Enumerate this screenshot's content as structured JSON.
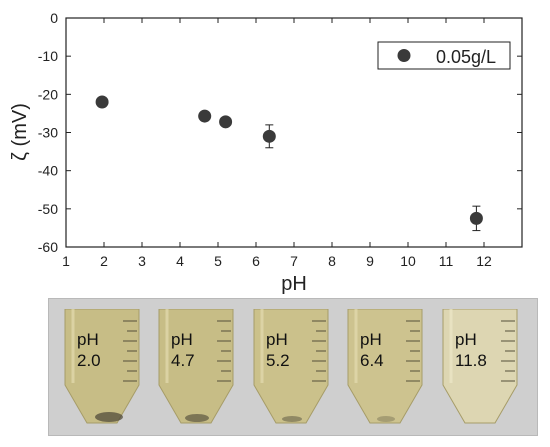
{
  "chart_data": {
    "type": "scatter",
    "title": "",
    "xlabel": "pH",
    "ylabel": "ζ (mV)",
    "xlim": [
      1,
      13
    ],
    "ylim": [
      -60,
      0
    ],
    "xticks": [
      1,
      2,
      3,
      4,
      5,
      6,
      7,
      8,
      9,
      10,
      11,
      12
    ],
    "yticks": [
      0,
      -10,
      -20,
      -30,
      -40,
      -50,
      -60
    ],
    "legend": "top-right",
    "grid": false,
    "series": [
      {
        "name": "0.05g/L",
        "color": "#3a3a3a",
        "points": [
          {
            "x": 1.95,
            "y": -22,
            "err": 0
          },
          {
            "x": 4.65,
            "y": -25.7,
            "err": 0
          },
          {
            "x": 5.2,
            "y": -27.2,
            "err": 0
          },
          {
            "x": 6.35,
            "y": -31,
            "err": 3
          },
          {
            "x": 11.8,
            "y": -52.5,
            "err": 3.2
          }
        ]
      }
    ]
  },
  "photos": [
    {
      "label_line1": "pH",
      "label_line2": "2.0"
    },
    {
      "label_line1": "pH",
      "label_line2": "4.7"
    },
    {
      "label_line1": "pH",
      "label_line2": "5.2"
    },
    {
      "label_line1": "pH",
      "label_line2": "6.4"
    },
    {
      "label_line1": "pH",
      "label_line2": "11.8"
    }
  ],
  "colors": {
    "marker": "#3a3a3a",
    "liquid": "#c7bd86",
    "liquid_clear": "#ddd6b2",
    "strip_background": "#cfcfcf"
  }
}
